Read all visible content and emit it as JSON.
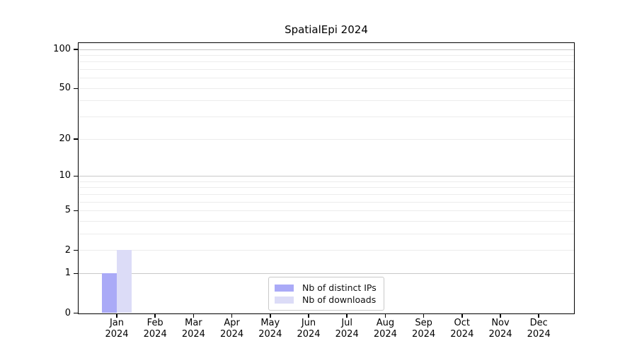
{
  "title": "SpatialEpi 2024",
  "chart_data": {
    "type": "bar",
    "title": "SpatialEpi 2024",
    "x_year_label": "2024",
    "categories": [
      "Jan",
      "Feb",
      "Mar",
      "Apr",
      "May",
      "Jun",
      "Jul",
      "Aug",
      "Sep",
      "Oct",
      "Nov",
      "Dec"
    ],
    "series": [
      {
        "name": "Nb of distinct IPs",
        "color": "#aaaaf7",
        "values": [
          1,
          0,
          0,
          0,
          0,
          0,
          0,
          0,
          0,
          0,
          0,
          0
        ]
      },
      {
        "name": "Nb of downloads",
        "color": "#dcdcf7",
        "values": [
          2,
          0,
          0,
          0,
          0,
          0,
          0,
          0,
          0,
          0,
          0,
          0
        ]
      }
    ],
    "y_axis": {
      "scale": "log1p",
      "tick_values": [
        0,
        1,
        2,
        5,
        10,
        20,
        50,
        100
      ],
      "major_gridlines": [
        1,
        10,
        100
      ],
      "minor_gridlines": [
        2,
        3,
        4,
        5,
        6,
        7,
        8,
        9,
        20,
        30,
        40,
        50,
        60,
        70,
        80,
        90
      ],
      "range": [
        0,
        112
      ]
    },
    "grid": "horizontal",
    "legend_position": "bottom-center-inside"
  },
  "colors": {
    "axis": "#000000",
    "grid_major": "#c8c8c8",
    "grid_minor": "#ececec",
    "legend_border": "#c9c9c9",
    "background": "#ffffff",
    "text": "#000000"
  }
}
